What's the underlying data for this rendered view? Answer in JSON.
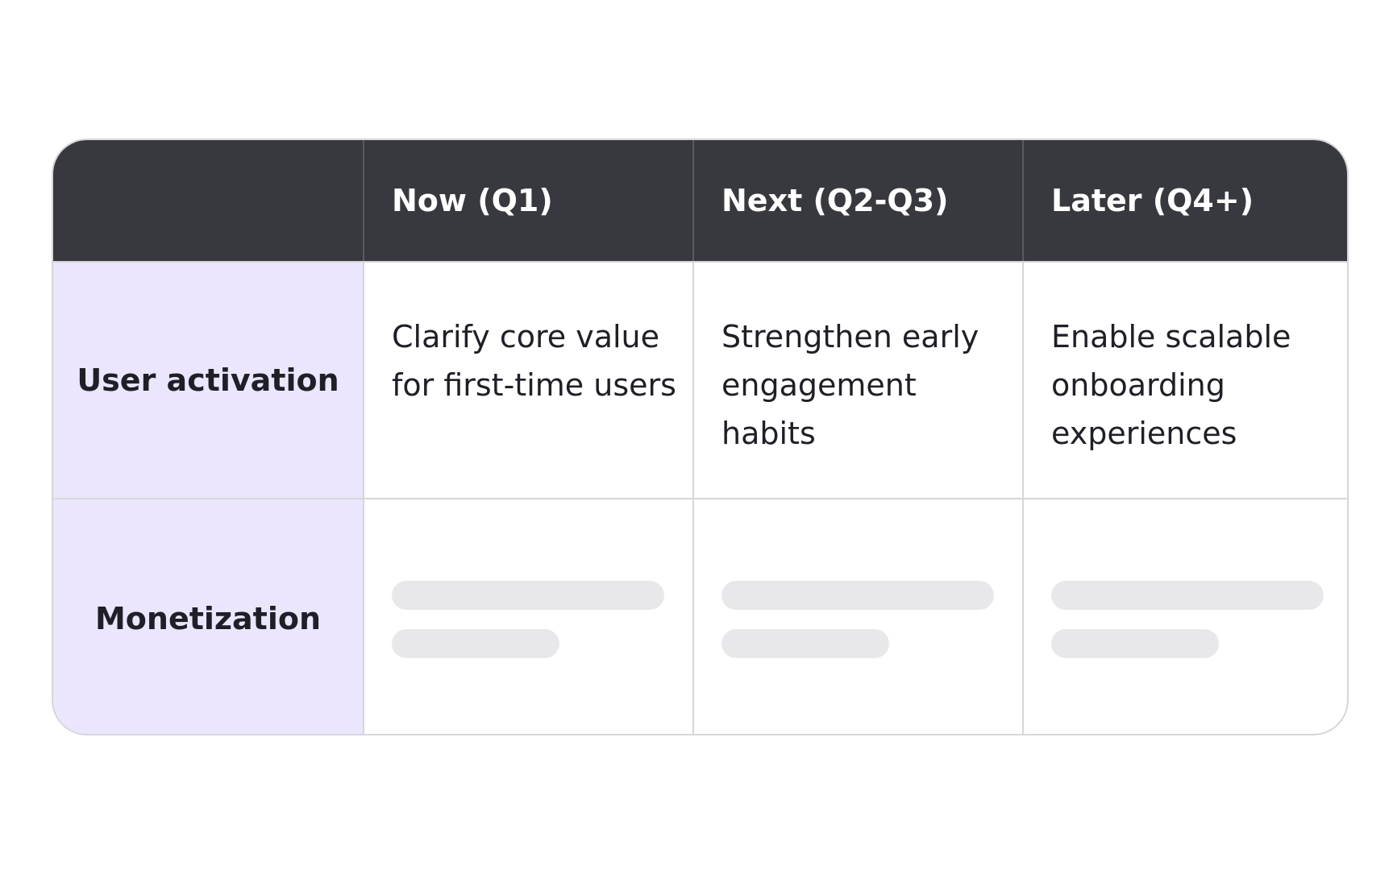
{
  "table": {
    "columns": [
      "Now (Q1)",
      "Next (Q2-Q3)",
      "Later (Q4+)"
    ],
    "rows": [
      {
        "label": "User activation",
        "cells": [
          "Clarify core value for first-time users",
          "Strengthen early engagement habits",
          "Enable scalable onboarding experiences"
        ]
      },
      {
        "label": "Monetization"
      }
    ]
  }
}
